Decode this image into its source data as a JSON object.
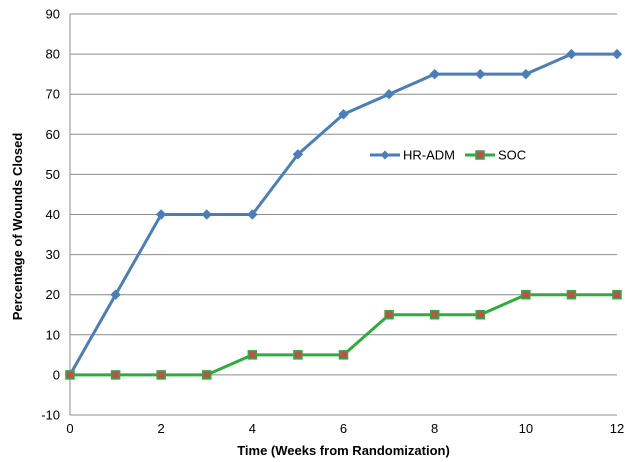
{
  "chart_data": {
    "type": "line",
    "title": "",
    "xlabel": "Time (Weeks from Randomization)",
    "ylabel": "Percentage of Wounds Closed",
    "xlim": [
      0,
      12
    ],
    "ylim": [
      -10,
      90
    ],
    "x_ticks": [
      0,
      2,
      4,
      6,
      8,
      10,
      12
    ],
    "y_ticks": [
      -10,
      0,
      10,
      20,
      30,
      40,
      50,
      60,
      70,
      80,
      90
    ],
    "grid": "horizontal",
    "legend_position": "center-right",
    "x": [
      0,
      1,
      2,
      3,
      4,
      5,
      6,
      7,
      8,
      9,
      10,
      11,
      12
    ],
    "series": [
      {
        "name": "HR-ADM",
        "color": "#4a7ebb",
        "marker": "diamond",
        "values": [
          0,
          20,
          40,
          40,
          40,
          55,
          65,
          70,
          75,
          75,
          75,
          80,
          80
        ]
      },
      {
        "name": "SOC",
        "color": "#2eac3c",
        "marker_fill": "#c0504d",
        "marker": "square",
        "values": [
          0,
          0,
          0,
          0,
          5,
          5,
          5,
          15,
          15,
          15,
          20,
          20,
          20
        ]
      }
    ]
  }
}
